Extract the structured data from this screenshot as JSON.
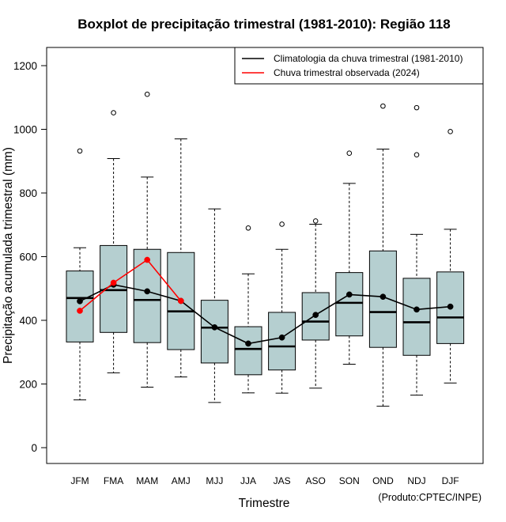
{
  "chart_data": {
    "type": "boxplot",
    "title": "Boxplot de precipitação trimestral (1981-2010): Região 118",
    "xlabel": "Trimestre",
    "ylabel": "Precipitação acumulada trimestral (mm)",
    "ylim": [
      -50,
      1260
    ],
    "yticks": [
      0,
      200,
      400,
      600,
      800,
      1000,
      1200
    ],
    "ytick_labels": [
      "0",
      "200",
      "400",
      "600",
      "800",
      "1000",
      "1200"
    ],
    "categories": [
      "JFM",
      "FMA",
      "MAM",
      "AMJ",
      "MJJ",
      "JJA",
      "JAS",
      "ASO",
      "SON",
      "OND",
      "NDJ",
      "DJF"
    ],
    "boxes": [
      {
        "whisker_low": 150,
        "q1": 332,
        "median": 470,
        "q3": 555,
        "whisker_high": 628,
        "outliers": [
          932
        ]
      },
      {
        "whisker_low": 235,
        "q1": 362,
        "median": 495,
        "q3": 635,
        "whisker_high": 908,
        "outliers": [
          1052
        ]
      },
      {
        "whisker_low": 190,
        "q1": 330,
        "median": 464,
        "q3": 623,
        "whisker_high": 850,
        "outliers": [
          1110
        ]
      },
      {
        "whisker_low": 222,
        "q1": 308,
        "median": 428,
        "q3": 613,
        "whisker_high": 970,
        "outliers": []
      },
      {
        "whisker_low": 142,
        "q1": 266,
        "median": 377,
        "q3": 463,
        "whisker_high": 750,
        "outliers": []
      },
      {
        "whisker_low": 172,
        "q1": 229,
        "median": 310,
        "q3": 380,
        "whisker_high": 546,
        "outliers": [
          690
        ]
      },
      {
        "whisker_low": 171,
        "q1": 244,
        "median": 318,
        "q3": 425,
        "whisker_high": 623,
        "outliers": [
          702
        ]
      },
      {
        "whisker_low": 187,
        "q1": 338,
        "median": 396,
        "q3": 487,
        "whisker_high": 702,
        "outliers": [
          712
        ]
      },
      {
        "whisker_low": 262,
        "q1": 351,
        "median": 455,
        "q3": 550,
        "whisker_high": 830,
        "outliers": [
          925
        ]
      },
      {
        "whisker_low": 130,
        "q1": 315,
        "median": 426,
        "q3": 618,
        "whisker_high": 938,
        "outliers": [
          1073
        ]
      },
      {
        "whisker_low": 165,
        "q1": 290,
        "median": 394,
        "q3": 532,
        "whisker_high": 670,
        "outliers": [
          1068,
          920
        ]
      },
      {
        "whisker_low": 203,
        "q1": 327,
        "median": 409,
        "q3": 552,
        "whisker_high": 686,
        "outliers": [
          993
        ]
      }
    ],
    "series": [
      {
        "name": "Climatologia da chuva trimestral (1981-2010)",
        "color": "#000000",
        "values": [
          460,
          512,
          491,
          461,
          378,
          327,
          346,
          417,
          481,
          474,
          434,
          443
        ]
      },
      {
        "name": "Chuva trimestral observada (2024)",
        "color": "#ff0000",
        "values": [
          430,
          518,
          590,
          461
        ]
      }
    ],
    "legend_position": "top-right",
    "box_color": "#b5cfd0",
    "credit": "(Produto:CPTEC/INPE)"
  }
}
